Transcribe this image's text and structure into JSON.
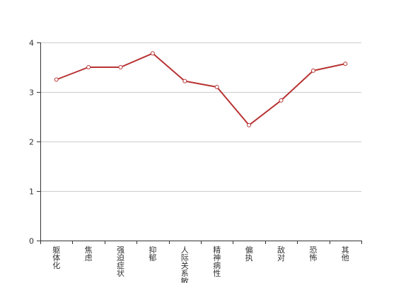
{
  "chart_data": {
    "type": "line",
    "categories": [
      "躯体化",
      "焦虑",
      "强迫症状",
      "抑郁",
      "人际关系敏感",
      "精神病性",
      "偏执",
      "敌对",
      "恐怖",
      "其他"
    ],
    "series": [
      {
        "values": [
          3.25,
          3.5,
          3.5,
          3.78,
          3.22,
          3.1,
          2.33,
          2.83,
          3.43,
          3.57
        ]
      }
    ],
    "ylim": [
      0,
      4
    ],
    "yticks": [
      0,
      1,
      2,
      3,
      4
    ],
    "grid": true,
    "colors": {
      "line": "#b83232",
      "grid": "#cccccc",
      "axis": "#333333",
      "marker_fill": "#ffffff"
    }
  }
}
